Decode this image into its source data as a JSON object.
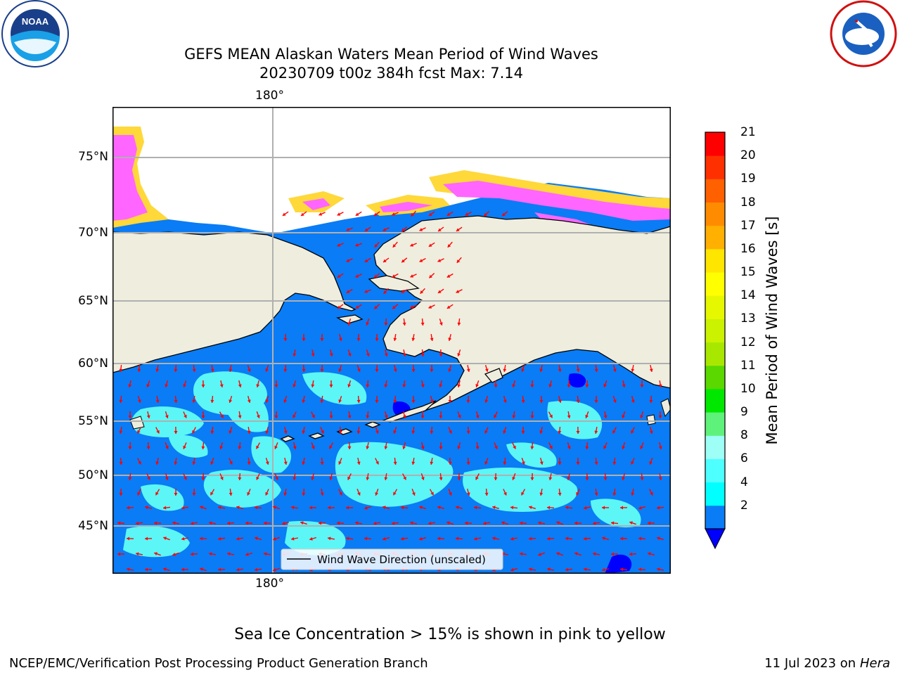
{
  "title_line1": "GEFS MEAN Alaskan Waters Mean Period of Wind Waves",
  "title_line2": "20230709 t00z 384h fcst   Max: 7.14",
  "logos": {
    "left": "noaa-logo",
    "right": "nws-logo",
    "noaa_text": "NOAA"
  },
  "map": {
    "lon_label_top": "180°",
    "lon_label_bottom": "180°",
    "lat_labels": [
      "75°N",
      "70°N",
      "65°N",
      "60°N",
      "55°N",
      "50°N",
      "45°N"
    ],
    "legend": "Wind Wave Direction (unscaled)",
    "colors": {
      "ocean": "#0a7cf5",
      "cyan": "#5cf6f6",
      "land": "#efedde",
      "ice_pink": "#ff66ff",
      "ice_yellow": "#ffd83a",
      "arrow": "#ff0000",
      "deep": "#0000ff"
    }
  },
  "colorbar": {
    "label": "Mean Period of Wind Waves [s]",
    "ticks": [
      "21",
      "20",
      "19",
      "18",
      "17",
      "16",
      "15",
      "14",
      "13",
      "12",
      "11",
      "10",
      "9",
      "8",
      "6",
      "4",
      "2"
    ],
    "colors": [
      "#0a7cf5",
      "#00ffff",
      "#4effff",
      "#9dfff6",
      "#5ef27a",
      "#00e800",
      "#5ad800",
      "#a8e800",
      "#cbf200",
      "#e6f800",
      "#ffff00",
      "#ffe600",
      "#ffb000",
      "#ff8c00",
      "#ff6000",
      "#ff3000",
      "#ff0000"
    ],
    "underflow": "#0000ff"
  },
  "note": "Sea Ice Concentration > 15% is shown in pink to yellow",
  "footer_left": "NCEP/EMC/Verification Post Processing Product Generation Branch",
  "footer_right_date": "11 Jul 2023 on",
  "footer_right_host": "Hera"
}
